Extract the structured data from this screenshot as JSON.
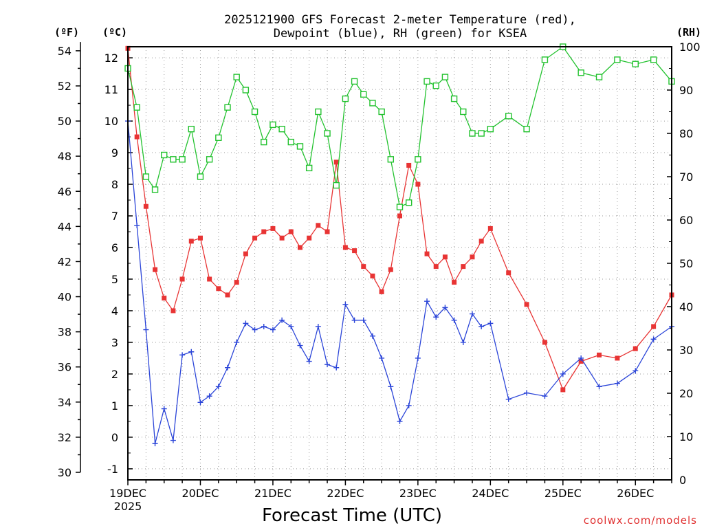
{
  "chart_data": {
    "type": "line",
    "title_line1": "2025121900 GFS Forecast 2-meter Temperature (red),",
    "title_line2": "Dewpoint (blue), RH (green) for KSEA",
    "unit_f": "(ºF)",
    "unit_c": "(ºC)",
    "unit_rh": "(RH)",
    "xlabel": "Forecast Time (UTC)",
    "credit": "coolwx.com/models",
    "x_range_hours": [
      0,
      180
    ],
    "x_ticks": [
      {
        "hour": 0,
        "label": "19DEC",
        "sub": "2025"
      },
      {
        "hour": 24,
        "label": "20DEC",
        "sub": ""
      },
      {
        "hour": 48,
        "label": "21DEC",
        "sub": ""
      },
      {
        "hour": 72,
        "label": "22DEC",
        "sub": ""
      },
      {
        "hour": 96,
        "label": "23DEC",
        "sub": ""
      },
      {
        "hour": 120,
        "label": "24DEC",
        "sub": ""
      },
      {
        "hour": 144,
        "label": "25DEC",
        "sub": ""
      },
      {
        "hour": 168,
        "label": "26DEC",
        "sub": ""
      }
    ],
    "y_left_celsius": {
      "range": [
        -1.35,
        12.35
      ],
      "ticks": [
        -1,
        0,
        1,
        2,
        3,
        4,
        5,
        6,
        7,
        8,
        9,
        10,
        11,
        12
      ]
    },
    "y_left_fahrenheit": {
      "ticks": [
        30,
        32,
        34,
        36,
        38,
        40,
        42,
        44,
        46,
        48,
        50,
        52,
        54
      ]
    },
    "y_right_rh": {
      "range": [
        0,
        100
      ],
      "ticks": [
        0,
        10,
        20,
        30,
        40,
        50,
        60,
        70,
        80,
        90,
        100
      ]
    },
    "grid": true,
    "series": [
      {
        "name": "Temperature (°C)",
        "color": "#e83434",
        "marker": "filled-square",
        "x": [
          0,
          3,
          6,
          9,
          12,
          15,
          18,
          21,
          24,
          27,
          30,
          33,
          36,
          39,
          42,
          45,
          48,
          51,
          54,
          57,
          60,
          63,
          66,
          69,
          72,
          75,
          78,
          81,
          84,
          87,
          90,
          93,
          96,
          99,
          102,
          105,
          108,
          111,
          114,
          117,
          120,
          126,
          132,
          138,
          144,
          150,
          156,
          162,
          168,
          174,
          180
        ],
        "values": [
          12.3,
          9.5,
          7.3,
          5.3,
          4.4,
          4.0,
          5.0,
          6.2,
          6.3,
          5.0,
          4.7,
          4.5,
          4.9,
          5.8,
          6.3,
          6.5,
          6.6,
          6.3,
          6.5,
          6.0,
          6.3,
          6.7,
          6.5,
          8.7,
          6.0,
          5.9,
          5.4,
          5.1,
          4.6,
          5.3,
          7.0,
          8.6,
          8.0,
          5.8,
          5.4,
          5.7,
          4.9,
          5.4,
          5.7,
          6.2,
          6.6,
          5.2,
          4.2,
          3.0,
          1.5,
          2.4,
          2.6,
          2.5,
          2.8,
          3.5,
          4.5
        ]
      },
      {
        "name": "Dewpoint (°C)",
        "color": "#2a44d8",
        "marker": "plus",
        "x": [
          0,
          3,
          6,
          9,
          12,
          15,
          18,
          21,
          24,
          27,
          30,
          33,
          36,
          39,
          42,
          45,
          48,
          51,
          54,
          57,
          60,
          63,
          66,
          69,
          72,
          75,
          78,
          81,
          84,
          87,
          90,
          93,
          96,
          99,
          102,
          105,
          108,
          111,
          114,
          117,
          120,
          126,
          132,
          138,
          144,
          150,
          156,
          162,
          168,
          174,
          180
        ],
        "values": [
          10.0,
          6.7,
          3.4,
          -0.2,
          0.9,
          -0.1,
          2.6,
          2.7,
          1.1,
          1.3,
          1.6,
          2.2,
          3.0,
          3.6,
          3.4,
          3.5,
          3.4,
          3.7,
          3.5,
          2.9,
          2.4,
          3.5,
          2.3,
          2.2,
          4.2,
          3.7,
          3.7,
          3.2,
          2.5,
          1.6,
          0.5,
          1.0,
          2.5,
          4.3,
          3.8,
          4.1,
          3.7,
          3.0,
          3.9,
          3.5,
          3.6,
          1.2,
          1.4,
          1.3,
          2.0,
          2.5,
          1.6,
          1.7,
          2.1,
          3.1,
          3.5
        ]
      },
      {
        "name": "RH (%)",
        "color": "#22c22e",
        "marker": "open-square",
        "x": [
          0,
          3,
          6,
          9,
          12,
          15,
          18,
          21,
          24,
          27,
          30,
          33,
          36,
          39,
          42,
          45,
          48,
          51,
          54,
          57,
          60,
          63,
          66,
          69,
          72,
          75,
          78,
          81,
          84,
          87,
          90,
          93,
          96,
          99,
          102,
          105,
          108,
          111,
          114,
          117,
          120,
          126,
          132,
          138,
          144,
          150,
          156,
          162,
          168,
          174,
          180
        ],
        "values": [
          95,
          86,
          70,
          67,
          75,
          74,
          74,
          81,
          70,
          74,
          79,
          86,
          93,
          90,
          85,
          78,
          82,
          81,
          78,
          77,
          72,
          85,
          80,
          68,
          88,
          92,
          89,
          87,
          85,
          74,
          63,
          64,
          74,
          92,
          91,
          93,
          88,
          85,
          80,
          80,
          81,
          84,
          81,
          97,
          100,
          94,
          93,
          97,
          96,
          97,
          92
        ]
      }
    ]
  }
}
